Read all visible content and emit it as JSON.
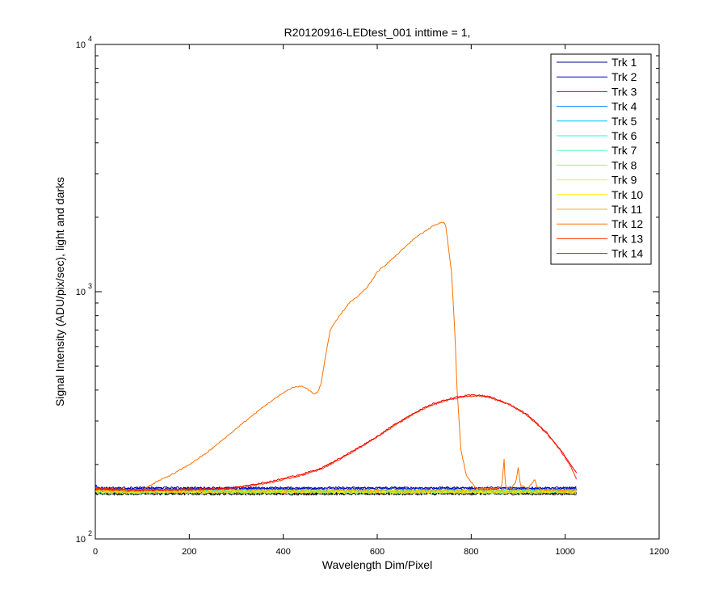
{
  "chart_data": {
    "type": "line",
    "title": "R20120916-LEDtest_001 inttime = 1,",
    "xlabel": "Wavelength Dim/Pixel",
    "ylabel": "Signal Intensity (ADU/pix/sec), light and darks",
    "xlim": [
      0,
      1200
    ],
    "ylim": [
      100,
      10000
    ],
    "yscale": "log",
    "x_ticks": [
      0,
      200,
      400,
      600,
      800,
      1000,
      1200
    ],
    "x_tick_labels": [
      "0",
      "200",
      "400",
      "600",
      "800",
      "1000",
      "1200"
    ],
    "y_ticks": [
      {
        "value": 100,
        "base": "10",
        "exp": "2"
      },
      {
        "value": 1000,
        "base": "10",
        "exp": "3"
      },
      {
        "value": 10000,
        "base": "10",
        "exp": "4"
      }
    ],
    "grid": false,
    "legend_position": "top-right",
    "series": [
      {
        "name": "Trk 1",
        "color": "#00008f",
        "baseline": 161,
        "wobble": 1.5
      },
      {
        "name": "Trk 2",
        "color": "#0000bf",
        "baseline": 160,
        "wobble": 1.5
      },
      {
        "name": "Trk 3",
        "color": "#003fff",
        "baseline": 158,
        "wobble": 2.0
      },
      {
        "name": "Trk 4",
        "color": "#0080ff",
        "baseline": 157,
        "wobble": 2.0
      },
      {
        "name": "Trk 5",
        "color": "#00bfff",
        "baseline": 156,
        "wobble": 2.0
      },
      {
        "name": "Trk 6",
        "color": "#10ffef",
        "baseline": 156,
        "wobble": 2.5
      },
      {
        "name": "Trk 7",
        "color": "#50ffaf",
        "baseline": 155,
        "wobble": 2.5
      },
      {
        "name": "Trk 8",
        "color": "#8fff70",
        "baseline": 155,
        "wobble": 2.5
      },
      {
        "name": "Trk 9",
        "color": "#cfff30",
        "baseline": 155,
        "wobble": 2.5
      },
      {
        "name": "Trk 10",
        "color": "#ffef00",
        "baseline": 156,
        "wobble": 2.5
      },
      {
        "name": "Trk 11",
        "color": "#ffaf00",
        "baseline": 156,
        "wobble": 2.5
      },
      {
        "name": "Trk 12",
        "color": "#ff7000",
        "points": [
          [
            0,
            160
          ],
          [
            20,
            158
          ],
          [
            60,
            156
          ],
          [
            95,
            156
          ],
          [
            110,
            162
          ],
          [
            130,
            170
          ],
          [
            170,
            185
          ],
          [
            200,
            200
          ],
          [
            240,
            225
          ],
          [
            280,
            260
          ],
          [
            320,
            300
          ],
          [
            360,
            345
          ],
          [
            400,
            390
          ],
          [
            420,
            410
          ],
          [
            440,
            415
          ],
          [
            455,
            400
          ],
          [
            465,
            385
          ],
          [
            472,
            390
          ],
          [
            480,
            420
          ],
          [
            490,
            550
          ],
          [
            500,
            700
          ],
          [
            520,
            800
          ],
          [
            540,
            900
          ],
          [
            560,
            960
          ],
          [
            580,
            1050
          ],
          [
            600,
            1200
          ],
          [
            640,
            1400
          ],
          [
            680,
            1650
          ],
          [
            720,
            1850
          ],
          [
            735,
            1900
          ],
          [
            745,
            1890
          ],
          [
            750,
            1600
          ],
          [
            758,
            1200
          ],
          [
            765,
            700
          ],
          [
            770,
            400
          ],
          [
            778,
            230
          ],
          [
            790,
            180
          ],
          [
            810,
            160
          ],
          [
            850,
            160
          ],
          [
            865,
            162
          ],
          [
            870,
            210
          ],
          [
            873,
            162
          ],
          [
            885,
            160
          ],
          [
            895,
            170
          ],
          [
            900,
            195
          ],
          [
            905,
            165
          ],
          [
            920,
            160
          ],
          [
            930,
            168
          ],
          [
            935,
            175
          ],
          [
            940,
            162
          ],
          [
            950,
            158
          ],
          [
            980,
            158
          ],
          [
            1000,
            158
          ],
          [
            1024,
            158
          ]
        ]
      },
      {
        "name": "Trk 13",
        "color": "#ff3000",
        "points": [
          [
            0,
            160
          ],
          [
            100,
            158
          ],
          [
            200,
            159
          ],
          [
            280,
            160
          ],
          [
            330,
            164
          ],
          [
            380,
            170
          ],
          [
            440,
            181
          ],
          [
            480,
            191
          ],
          [
            520,
            210
          ],
          [
            560,
            232
          ],
          [
            600,
            258
          ],
          [
            640,
            290
          ],
          [
            680,
            322
          ],
          [
            720,
            350
          ],
          [
            760,
            368
          ],
          [
            790,
            377
          ],
          [
            810,
            379
          ],
          [
            840,
            373
          ],
          [
            880,
            350
          ],
          [
            920,
            315
          ],
          [
            960,
            268
          ],
          [
            990,
            228
          ],
          [
            1010,
            199
          ],
          [
            1024,
            175
          ]
        ]
      },
      {
        "name": "Trk 14",
        "color": "#ef0000",
        "points": [
          [
            0,
            159
          ],
          [
            100,
            157
          ],
          [
            200,
            158
          ],
          [
            280,
            160
          ],
          [
            330,
            165
          ],
          [
            380,
            172
          ],
          [
            440,
            183
          ],
          [
            480,
            193
          ],
          [
            520,
            212
          ],
          [
            560,
            234
          ],
          [
            600,
            260
          ],
          [
            640,
            293
          ],
          [
            680,
            325
          ],
          [
            720,
            353
          ],
          [
            760,
            372
          ],
          [
            790,
            380
          ],
          [
            810,
            383
          ],
          [
            840,
            376
          ],
          [
            880,
            352
          ],
          [
            920,
            318
          ],
          [
            960,
            270
          ],
          [
            990,
            230
          ],
          [
            1010,
            202
          ],
          [
            1024,
            185
          ]
        ]
      }
    ],
    "dark_traces": {
      "color": "#000000",
      "levels": [
        154,
        153,
        152
      ]
    }
  }
}
